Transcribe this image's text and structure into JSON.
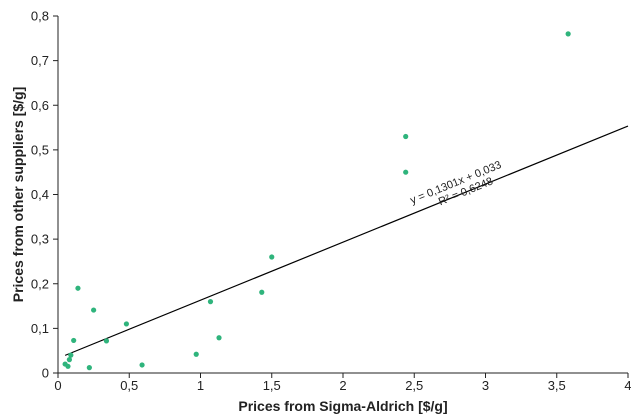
{
  "chart_data": {
    "type": "scatter",
    "xlabel": "Prices from Sigma-Aldrich [$/g]",
    "ylabel": "Prices from other suppliers [$/g]",
    "xlim": [
      0,
      4
    ],
    "ylim": [
      0,
      0.8
    ],
    "x_ticks": [
      "0",
      "0,5",
      "1",
      "1,5",
      "2",
      "2,5",
      "3",
      "3,5",
      "4"
    ],
    "y_ticks": [
      "0",
      "0,1",
      "0,2",
      "0,3",
      "0,4",
      "0,5",
      "0,6",
      "0,7",
      "0,8"
    ],
    "grid": false,
    "point_color": "#2fb47c",
    "trendline_color": "#000000",
    "points": [
      {
        "x": 0.05,
        "y": 0.02
      },
      {
        "x": 0.07,
        "y": 0.015
      },
      {
        "x": 0.08,
        "y": 0.03
      },
      {
        "x": 0.09,
        "y": 0.04
      },
      {
        "x": 0.11,
        "y": 0.073
      },
      {
        "x": 0.14,
        "y": 0.19
      },
      {
        "x": 0.22,
        "y": 0.012
      },
      {
        "x": 0.25,
        "y": 0.141
      },
      {
        "x": 0.34,
        "y": 0.072
      },
      {
        "x": 0.48,
        "y": 0.11
      },
      {
        "x": 0.59,
        "y": 0.018
      },
      {
        "x": 0.97,
        "y": 0.042
      },
      {
        "x": 1.07,
        "y": 0.16
      },
      {
        "x": 1.13,
        "y": 0.079
      },
      {
        "x": 1.43,
        "y": 0.181
      },
      {
        "x": 1.5,
        "y": 0.26
      },
      {
        "x": 2.44,
        "y": 0.53
      },
      {
        "x": 2.44,
        "y": 0.45
      },
      {
        "x": 3.58,
        "y": 0.76
      }
    ],
    "trendline": {
      "slope": 0.1301,
      "intercept": 0.033,
      "x_start": 0.05,
      "equation": "y = 0,1301x + 0,033",
      "r2": "R² = 0,6248"
    }
  }
}
